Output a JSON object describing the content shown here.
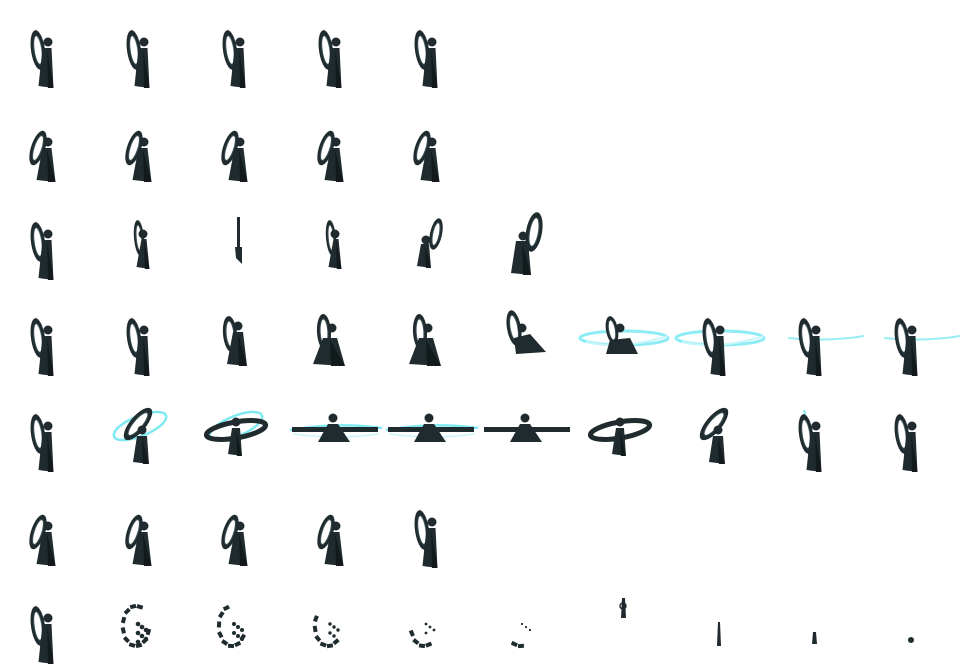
{
  "sheet": {
    "type": "sprite-sheet",
    "character": "ring-wielder",
    "colors": {
      "background": "#ffffff",
      "body": "#1f2b2e",
      "body_dark": "#121a1c",
      "ring_inner": "#3d5257",
      "effect": "#7fe9f2",
      "effect_light": "#c8f6fa"
    },
    "rows": [
      {
        "animation": "idle",
        "frames": [
          {
            "pose": "stand"
          },
          {
            "pose": "stand"
          },
          {
            "pose": "stand"
          },
          {
            "pose": "stand"
          },
          {
            "pose": "stand"
          }
        ]
      },
      {
        "animation": "walk",
        "frames": [
          {
            "pose": "walk"
          },
          {
            "pose": "walk"
          },
          {
            "pose": "walk"
          },
          {
            "pose": "walk"
          },
          {
            "pose": "walk"
          }
        ]
      },
      {
        "animation": "turn",
        "frames": [
          {
            "pose": "stand"
          },
          {
            "pose": "thin"
          },
          {
            "pose": "edge"
          },
          {
            "pose": "thin"
          },
          {
            "pose": "back"
          },
          {
            "pose": "back-big"
          }
        ]
      },
      {
        "animation": "attack",
        "frames": [
          {
            "pose": "stand"
          },
          {
            "pose": "stand"
          },
          {
            "pose": "lean"
          },
          {
            "pose": "crouch"
          },
          {
            "pose": "crouch"
          },
          {
            "pose": "swoop"
          },
          {
            "pose": "slash",
            "fx": "wide"
          },
          {
            "pose": "stand",
            "fx": "wide"
          },
          {
            "pose": "stand",
            "fx": "thin"
          },
          {
            "pose": "stand",
            "fx": "thin"
          }
        ]
      },
      {
        "animation": "spin",
        "frames": [
          {
            "pose": "stand"
          },
          {
            "pose": "tilt",
            "fx": "ring"
          },
          {
            "pose": "tilt-low",
            "fx": "ring"
          },
          {
            "pose": "spread",
            "fx": "beam"
          },
          {
            "pose": "spread",
            "fx": "beam"
          },
          {
            "pose": "spread"
          },
          {
            "pose": "tilt-low"
          },
          {
            "pose": "tilt"
          },
          {
            "pose": "stand",
            "fx": "streak"
          },
          {
            "pose": "stand"
          }
        ]
      },
      {
        "animation": "walk-alt",
        "frames": [
          {
            "pose": "walk"
          },
          {
            "pose": "walk"
          },
          {
            "pose": "walk"
          },
          {
            "pose": "walk"
          },
          {
            "pose": "stand"
          }
        ]
      },
      {
        "animation": "death",
        "frames": [
          {
            "pose": "stand"
          },
          {
            "pose": "break1"
          },
          {
            "pose": "break2"
          },
          {
            "pose": "break3"
          },
          {
            "pose": "break4"
          },
          {
            "pose": "break5"
          },
          {
            "pose": "spike"
          },
          {
            "pose": "spike-small"
          },
          {
            "pose": "shard"
          },
          {
            "pose": "dot"
          }
        ]
      }
    ]
  }
}
